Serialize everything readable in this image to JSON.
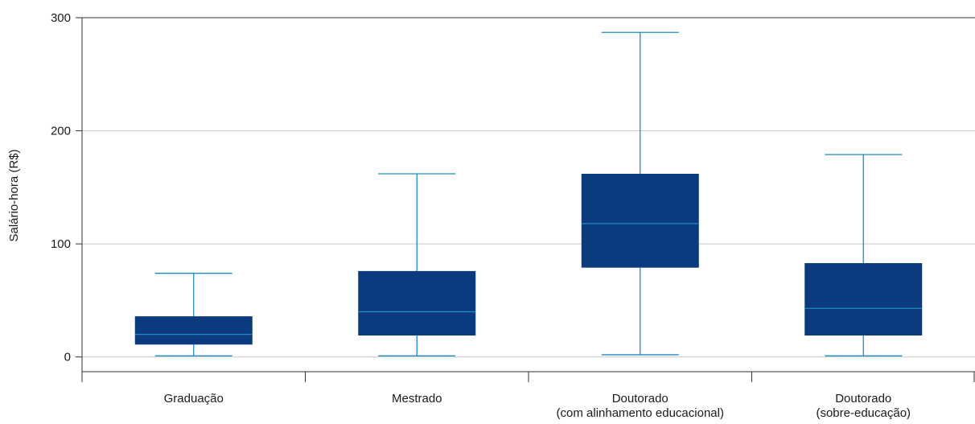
{
  "chart_data": {
    "type": "box",
    "ylabel": "Salário-hora (R$)",
    "ylim": [
      -13,
      300
    ],
    "yticks": [
      0,
      100,
      200,
      300
    ],
    "grid": true,
    "colors": {
      "box_fill": "#0b3a7e",
      "line": "#1e8bc3",
      "grid": "#c8c8c8",
      "axis": "#333333"
    },
    "categories": [
      {
        "label_lines": [
          "Graduação"
        ],
        "min": 1,
        "q1": 11,
        "median": 20,
        "q3": 36,
        "max": 74
      },
      {
        "label_lines": [
          "Mestrado"
        ],
        "min": 1,
        "q1": 19,
        "median": 40,
        "q3": 76,
        "max": 162
      },
      {
        "label_lines": [
          "Doutorado",
          "(com alinhamento educacional)"
        ],
        "min": 2,
        "q1": 79,
        "median": 118,
        "q3": 162,
        "max": 287
      },
      {
        "label_lines": [
          "Doutorado",
          "(sobre-educação)"
        ],
        "min": 1,
        "q1": 19,
        "median": 43,
        "q3": 83,
        "max": 179
      }
    ]
  }
}
